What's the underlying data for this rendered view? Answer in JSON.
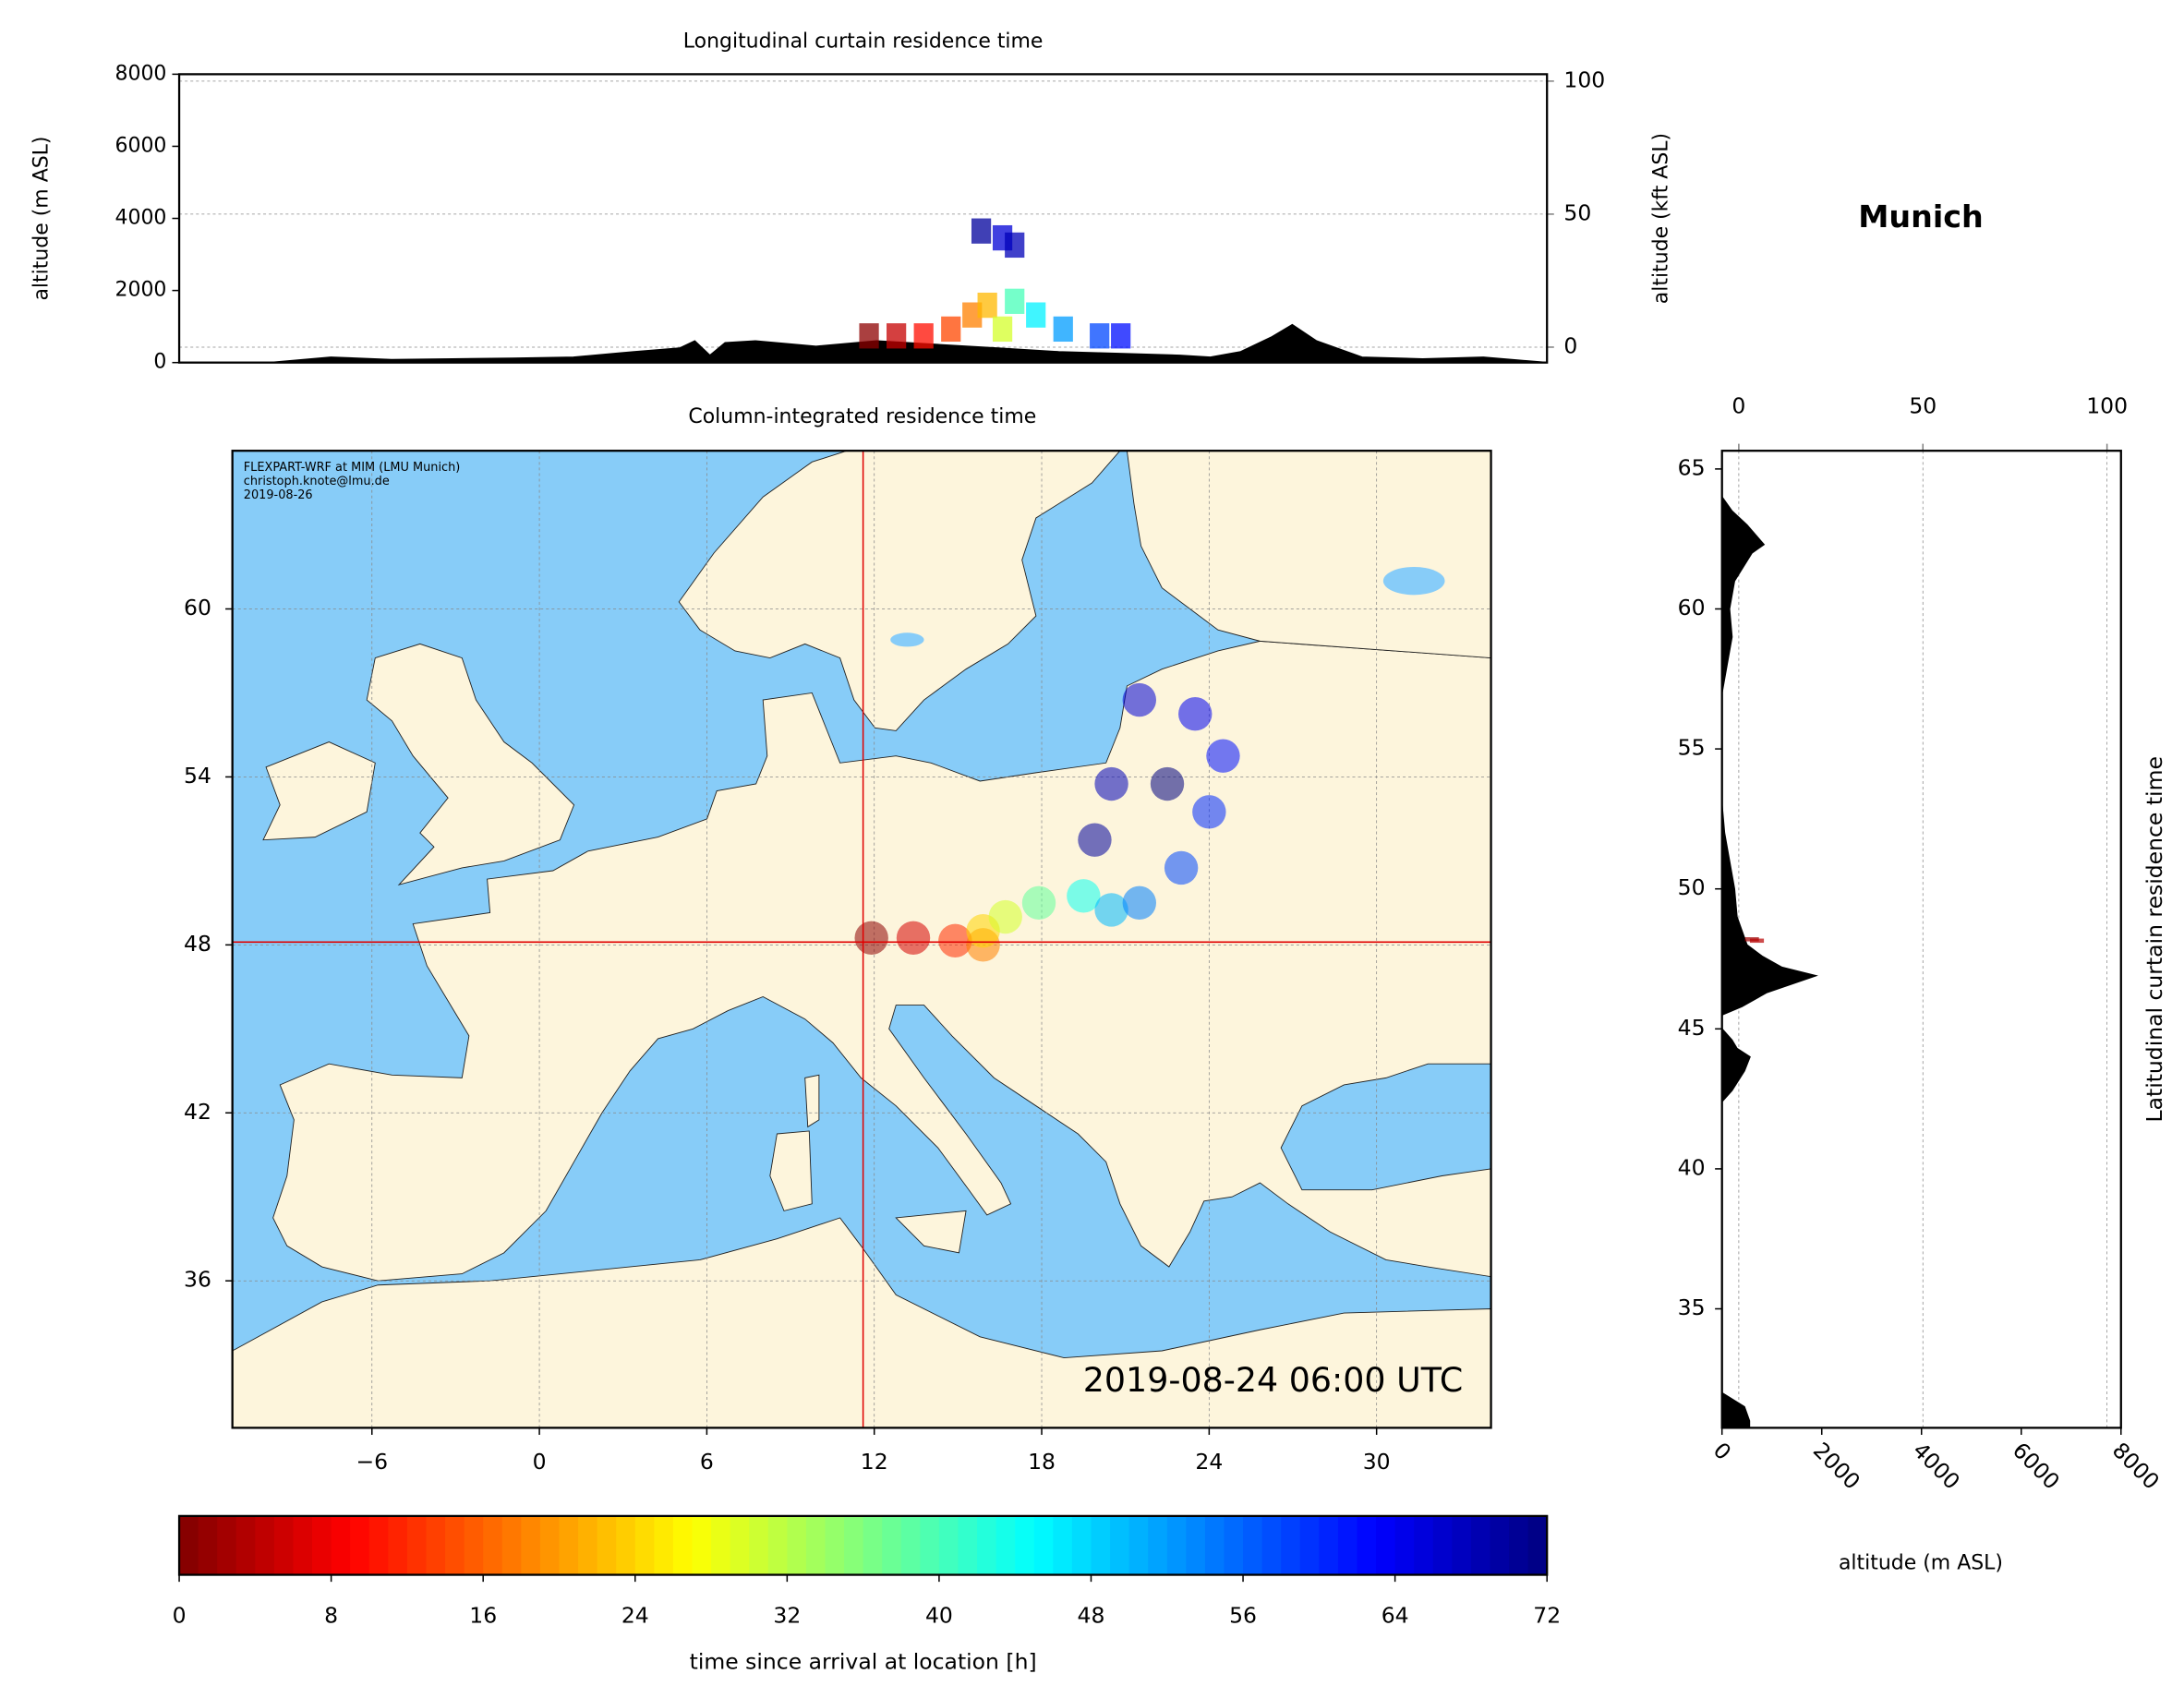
{
  "suptitle": "Munich",
  "chart_data": [
    {
      "type": "curtain-lon",
      "title": "Longitudinal curtain residence time",
      "y_label": "altitude (m ASL)",
      "y2_label": "altitude (kft ASL)",
      "xlim": [
        -11,
        34.1
      ],
      "ylim": [
        0,
        8000
      ],
      "yticks": [
        0,
        2000,
        4000,
        6000,
        8000
      ],
      "y2lim": [
        -5.8,
        102.6
      ],
      "y2ticks": [
        0,
        50,
        100
      ],
      "grid": true,
      "color": "#000000",
      "x": [
        -11,
        -8,
        -6,
        -4,
        -2,
        0,
        2,
        4,
        5.5,
        6,
        6.5,
        7,
        8,
        10,
        12,
        14,
        16,
        18,
        20,
        22,
        23,
        24,
        25,
        25.7,
        26.5,
        28,
        30,
        32,
        34.1
      ],
      "values": [
        0,
        0,
        150,
        80,
        100,
        120,
        150,
        300,
        400,
        600,
        200,
        550,
        600,
        450,
        600,
        500,
        400,
        300,
        250,
        200,
        150,
        300,
        700,
        1050,
        600,
        150,
        100,
        150,
        0
      ],
      "trajectory": {
        "x": [
          11.7,
          12.6,
          13.5,
          14.4,
          15.1,
          15.6,
          16.1,
          16.5,
          17.2,
          18.1,
          19.3,
          20,
          16.1,
          16.5,
          15.4
        ],
        "y": [
          740,
          740,
          740,
          930,
          1320,
          1590,
          930,
          1700,
          1320,
          930,
          740,
          740,
          3460,
          3260,
          3650
        ],
        "time": [
          1,
          5,
          10,
          14,
          18,
          22,
          30,
          40,
          46,
          52,
          58,
          62,
          66,
          68,
          70
        ]
      }
    },
    {
      "type": "map",
      "title": "Column-integrated residence time",
      "xlim": [
        -11,
        34.1
      ],
      "ylim": [
        30.75,
        65.65
      ],
      "xticks": [
        {
          "value": -6,
          "label": "−6"
        },
        0,
        6,
        12,
        18,
        24,
        30
      ],
      "yticks": [
        36,
        42,
        48,
        54,
        60
      ],
      "grid": true,
      "credit": [
        "FLEXPART-WRF at MIM (LMU Munich)",
        "christoph.knote@lmu.de",
        "2019-08-26"
      ],
      "timestamp": "2019-08-24 06:00 UTC",
      "location": {
        "lon": 11.6,
        "lat": 48.1
      },
      "crosshair_color": "#e00000",
      "plume": {
        "x": [
          11.9,
          13.4,
          14.9,
          15.9,
          15.9,
          16.7,
          17.9,
          19.5,
          20.5,
          21.5,
          23,
          24,
          24.5,
          23.5,
          21.5,
          20.5,
          19.9,
          22.5
        ],
        "y": [
          48.25,
          48.25,
          48.15,
          48.0,
          48.5,
          49.0,
          49.5,
          49.75,
          49.25,
          49.5,
          50.75,
          52.75,
          54.75,
          56.25,
          56.75,
          53.75,
          51.75,
          53.75
        ],
        "time": [
          1,
          6,
          12,
          18,
          24,
          30,
          38,
          44,
          50,
          54,
          58,
          60,
          62,
          64,
          66,
          68,
          70,
          72
        ]
      }
    },
    {
      "type": "curtain-lat",
      "title": "Latitudinal curtain residence time",
      "x_label": "altitude (m ASL)",
      "xlim": [
        0,
        8000
      ],
      "xticks": [
        0,
        2000,
        4000,
        6000,
        8000
      ],
      "x2lim": [
        -4.56,
        103.8
      ],
      "x2ticks": [
        0,
        50,
        100
      ],
      "ylim": [
        30.75,
        65.65
      ],
      "yticks": [
        35,
        40,
        45,
        50,
        55,
        60,
        65
      ],
      "grid": true,
      "color": "#000000",
      "y": [
        30.75,
        31,
        31.5,
        32,
        42.4,
        42.8,
        43.5,
        44,
        44.3,
        44.6,
        45,
        45.5,
        45.8,
        46.3,
        46.9,
        47.2,
        47.6,
        48,
        49,
        50,
        51,
        52,
        53,
        57,
        58,
        59,
        60,
        61,
        62,
        62.3,
        63,
        63.5,
        64,
        65.65
      ],
      "values": [
        550,
        550,
        450,
        0,
        0,
        200,
        450,
        560,
        300,
        200,
        0,
        0,
        400,
        900,
        1880,
        1200,
        800,
        500,
        300,
        250,
        150,
        50,
        0,
        0,
        100,
        200,
        150,
        250,
        600,
        840,
        500,
        200,
        0,
        0
      ],
      "trajectory": {
        "y": [
          48.2,
          48.15
        ],
        "x": [
          600,
          700
        ],
        "time": [
          2,
          4
        ]
      }
    },
    {
      "type": "colorbar",
      "label": "time since arrival at location [h]",
      "colormap": "jet_r",
      "lim": [
        0,
        72
      ],
      "ticks": [
        0,
        8,
        16,
        24,
        32,
        40,
        48,
        56,
        64,
        72
      ]
    }
  ]
}
